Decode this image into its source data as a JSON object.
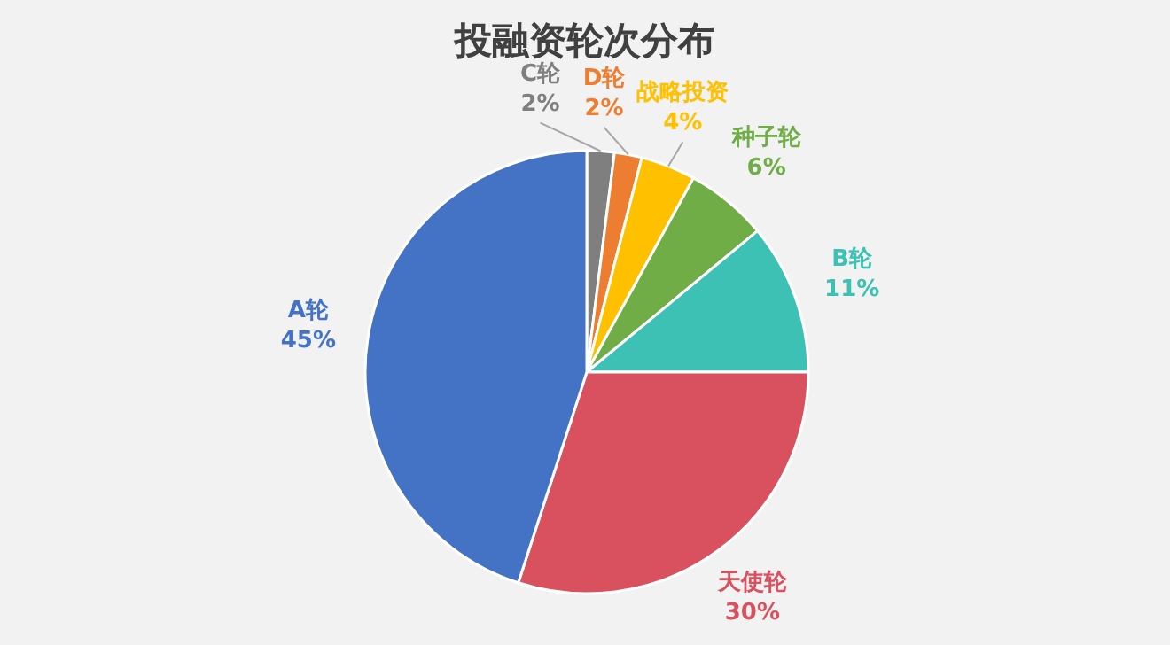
{
  "chart_data": {
    "type": "pie",
    "title": "投融资轮次分布",
    "categories": [
      "C轮",
      "D轮",
      "战略投资",
      "种子轮",
      "B轮",
      "天使轮",
      "A轮"
    ],
    "values": [
      2,
      2,
      4,
      6,
      11,
      30,
      45
    ],
    "value_labels": [
      "2%",
      "2%",
      "4%",
      "6%",
      "11%",
      "30%",
      "45%"
    ],
    "colors": [
      "#7f7f7f",
      "#ed7d31",
      "#ffc000",
      "#70ad47",
      "#3cc1b4",
      "#d9505f",
      "#4472c4"
    ]
  }
}
